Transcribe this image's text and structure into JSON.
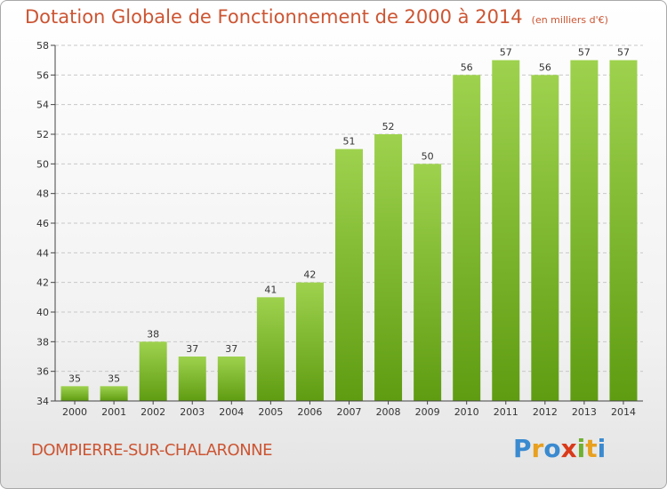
{
  "header": {
    "title": "Dotation Globale de Fonctionnement de 2000 à 2014",
    "subtitle": "(en milliers d'€)"
  },
  "footer": {
    "commune": "DOMPIERRE-SUR-CHALARONNE",
    "logo": [
      "P",
      "r",
      "o",
      "x",
      "i",
      "t",
      "i"
    ],
    "logo_colors": [
      "#3a8ad0",
      "#e8a020",
      "#3a8ad0",
      "#d93a1a",
      "#6fb030",
      "#e8a020",
      "#3a8ad0"
    ]
  },
  "colors": {
    "bar_light": "#9ed24e",
    "bar_dark": "#5f9c12",
    "title": "#cc5533",
    "axis": "#444444",
    "grid": "#c8c8c8"
  },
  "chart_data": {
    "type": "bar",
    "categories": [
      "2000",
      "2001",
      "2002",
      "2003",
      "2004",
      "2005",
      "2006",
      "2007",
      "2008",
      "2009",
      "2010",
      "2011",
      "2012",
      "2013",
      "2014"
    ],
    "values": [
      35,
      35,
      38,
      37,
      37,
      41,
      42,
      51,
      52,
      50,
      56,
      57,
      56,
      57,
      57
    ],
    "title": "Dotation Globale de Fonctionnement de 2000 à 2014",
    "subtitle": "(en milliers d'€)",
    "xlabel": "",
    "ylabel": "",
    "ylim": [
      34,
      58
    ],
    "yticks": [
      34,
      36,
      38,
      40,
      42,
      44,
      46,
      48,
      50,
      52,
      54,
      56,
      58
    ],
    "grid": true,
    "data_labels": true
  }
}
